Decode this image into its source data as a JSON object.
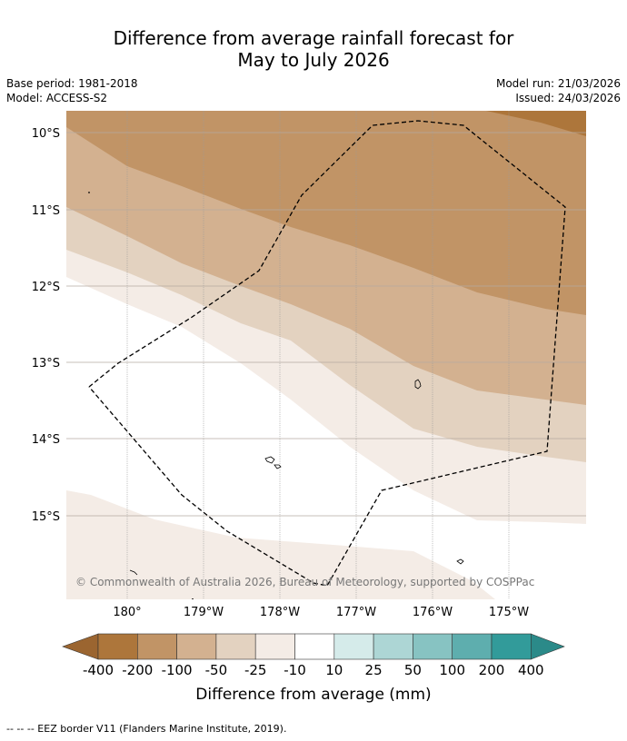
{
  "title_line1": "Difference from average rainfall forecast for",
  "title_line2": "May to July 2026",
  "meta": {
    "base_period": "Base period: 1981-2018",
    "model": "Model: ACCESS-S2",
    "model_run": "Model run: 21/03/2026",
    "issued": "Issued: 24/03/2026"
  },
  "axes": {
    "lat_labels": [
      "10°S",
      "11°S",
      "12°S",
      "13°S",
      "14°S",
      "15°S"
    ],
    "lon_labels": [
      "180°",
      "179°W",
      "178°W",
      "177°W",
      "176°W",
      "175°W"
    ]
  },
  "copyright": "© Commonwealth of Australia 2026, Bureau of Meteorology, supported by COSPPac",
  "colorbar": {
    "labels": [
      "-400",
      "-200",
      "-100",
      "-50",
      "-25",
      "-10",
      "10",
      "25",
      "50",
      "100",
      "200",
      "400"
    ],
    "colors": [
      "#ad763b",
      "#c19466",
      "#d3b190",
      "#e3d2c0",
      "#f4ece6",
      "#ffffff",
      "#d5ebea",
      "#add6d5",
      "#87c3c2",
      "#5eaeae",
      "#329b9a"
    ],
    "low_extension_color": "#9b6530",
    "high_extension_color": "#2b8a89",
    "title": "Difference from average (mm)"
  },
  "legend_footer": "--  --  -- EEZ border V11 (Flanders Marine Institute, 2019)."
}
